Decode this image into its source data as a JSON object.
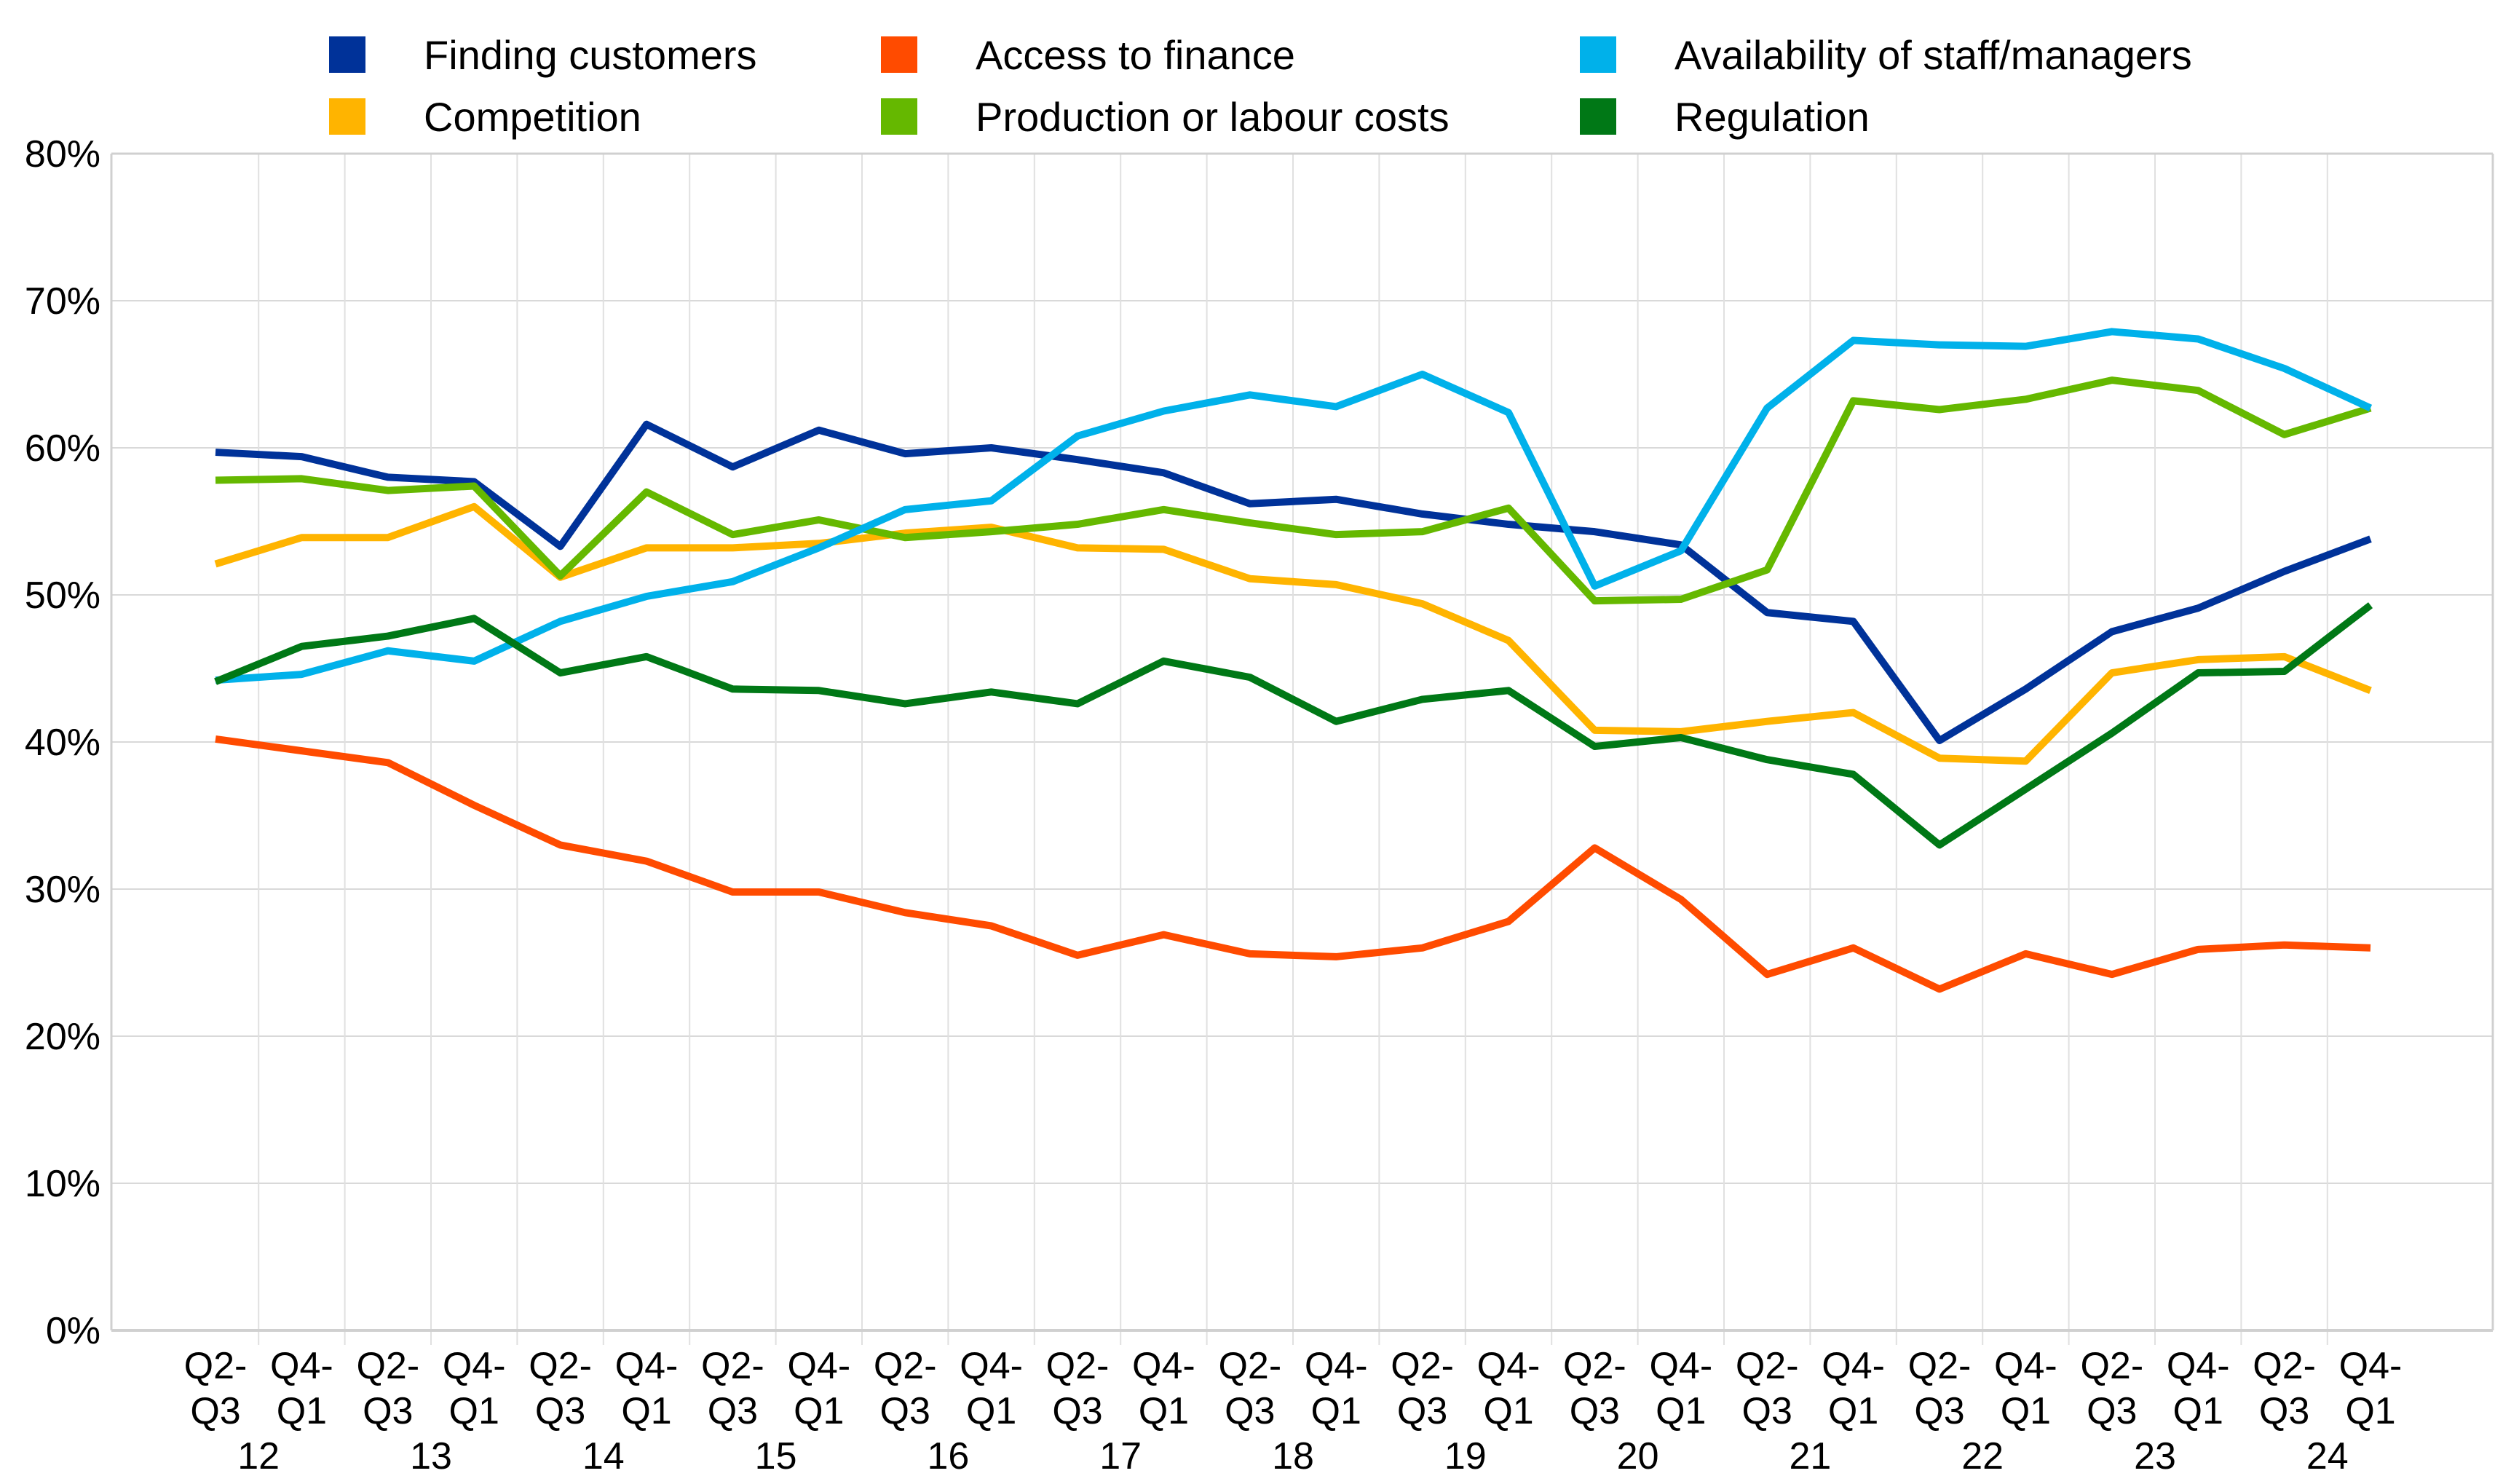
{
  "chart_data": {
    "type": "line",
    "title": "",
    "xlabel": "",
    "ylabel": "",
    "ylim": [
      0,
      80
    ],
    "y_ticks": [
      "0%",
      "10%",
      "20%",
      "30%",
      "40%",
      "50%",
      "60%",
      "70%",
      "80%"
    ],
    "grid": true,
    "legend_position": "top",
    "categories": [
      "Q2-Q3 12",
      "Q4-Q1 12",
      "Q2-Q3 13",
      "Q4-Q1 13",
      "Q2-Q3 14",
      "Q4-Q1 14",
      "Q2-Q3 15",
      "Q4-Q1 15",
      "Q2-Q3 16",
      "Q4-Q1 16",
      "Q2-Q3 17",
      "Q4-Q1 17",
      "Q2-Q3 18",
      "Q4-Q1 18",
      "Q2-Q3 19",
      "Q4-Q1 19",
      "Q2-Q3 20",
      "Q4-Q1 20",
      "Q2-Q3 21",
      "Q4-Q1 21",
      "Q2-Q3 22",
      "Q4-Q1 22",
      "Q2-Q3 23",
      "Q4-Q1 23",
      "Q2-Q3 24",
      "Q4-Q1 24"
    ],
    "x_tick_line1": [
      "Q2-",
      "Q4-",
      "Q2-",
      "Q4-",
      "Q2-",
      "Q4-",
      "Q2-",
      "Q4-",
      "Q2-",
      "Q4-",
      "Q2-",
      "Q4-",
      "Q2-",
      "Q4-",
      "Q2-",
      "Q4-",
      "Q2-",
      "Q4-",
      "Q2-",
      "Q4-",
      "Q2-",
      "Q4-",
      "Q2-",
      "Q4-",
      "Q2-",
      "Q4-"
    ],
    "x_tick_line2": [
      "Q3",
      "Q1",
      "Q3",
      "Q1",
      "Q3",
      "Q1",
      "Q3",
      "Q1",
      "Q3",
      "Q1",
      "Q3",
      "Q1",
      "Q3",
      "Q1",
      "Q3",
      "Q1",
      "Q3",
      "Q1",
      "Q3",
      "Q1",
      "Q3",
      "Q1",
      "Q3",
      "Q1",
      "Q3",
      "Q1"
    ],
    "x_year_labels": [
      "12",
      "13",
      "14",
      "15",
      "16",
      "17",
      "18",
      "19",
      "20",
      "21",
      "22",
      "23",
      "24"
    ],
    "series": [
      {
        "name": "Finding customers",
        "color": "#003299",
        "values": [
          59.7,
          59.4,
          58.0,
          57.7,
          53.3,
          61.6,
          58.7,
          61.2,
          59.6,
          60.0,
          59.2,
          58.3,
          56.2,
          56.5,
          55.5,
          54.8,
          54.3,
          53.4,
          48.8,
          48.2,
          40.1,
          43.6,
          47.5,
          49.1,
          51.6,
          53.8
        ]
      },
      {
        "name": "Competition",
        "color": "#FFB400",
        "values": [
          52.1,
          53.9,
          53.9,
          56.0,
          51.2,
          53.2,
          53.2,
          53.5,
          54.2,
          54.6,
          53.2,
          53.1,
          51.1,
          50.7,
          49.4,
          46.9,
          40.8,
          40.7,
          41.4,
          42.0,
          38.9,
          38.7,
          44.7,
          45.6,
          45.8,
          43.5
        ]
      },
      {
        "name": "Access to finance",
        "color": "#FF4B00",
        "values": [
          40.2,
          39.4,
          38.6,
          35.7,
          33.0,
          31.9,
          29.8,
          29.8,
          28.4,
          27.5,
          25.5,
          26.9,
          25.6,
          25.4,
          26.0,
          27.8,
          32.8,
          29.3,
          24.2,
          26.0,
          23.2,
          25.6,
          24.2,
          25.9,
          26.2,
          26.0
        ]
      },
      {
        "name": "Production or labour costs",
        "color": "#65B800",
        "values": [
          57.8,
          57.9,
          57.1,
          57.4,
          51.3,
          57.0,
          54.1,
          55.1,
          53.9,
          54.3,
          54.8,
          55.8,
          54.9,
          54.1,
          54.3,
          55.9,
          49.6,
          49.7,
          51.7,
          63.2,
          62.6,
          63.3,
          64.6,
          63.9,
          60.9,
          62.7
        ]
      },
      {
        "name": "Availability of staff/managers",
        "color": "#00B1EA",
        "values": [
          44.2,
          44.6,
          46.2,
          45.5,
          48.2,
          49.9,
          50.9,
          53.2,
          55.8,
          56.4,
          60.8,
          62.5,
          63.6,
          62.8,
          65.0,
          62.4,
          50.6,
          53.0,
          62.7,
          67.3,
          67.0,
          66.9,
          67.9,
          67.4,
          65.4,
          62.7
        ]
      },
      {
        "name": "Regulation",
        "color": "#007816",
        "values": [
          44.1,
          46.5,
          47.2,
          48.4,
          44.7,
          45.8,
          43.6,
          43.5,
          42.6,
          43.4,
          42.6,
          45.5,
          44.4,
          41.4,
          42.9,
          43.5,
          39.7,
          40.3,
          38.8,
          37.8,
          33.0,
          36.8,
          40.6,
          44.7,
          44.8,
          49.3
        ]
      }
    ]
  },
  "legend": {
    "items": [
      {
        "label": "Finding customers",
        "color": "#003299"
      },
      {
        "label": "Access to finance",
        "color": "#FF4B00"
      },
      {
        "label": "Availability of staff/managers",
        "color": "#00B1EA"
      },
      {
        "label": "Competition",
        "color": "#FFB400"
      },
      {
        "label": "Production or labour costs",
        "color": "#65B800"
      },
      {
        "label": "Regulation",
        "color": "#007816"
      }
    ]
  }
}
